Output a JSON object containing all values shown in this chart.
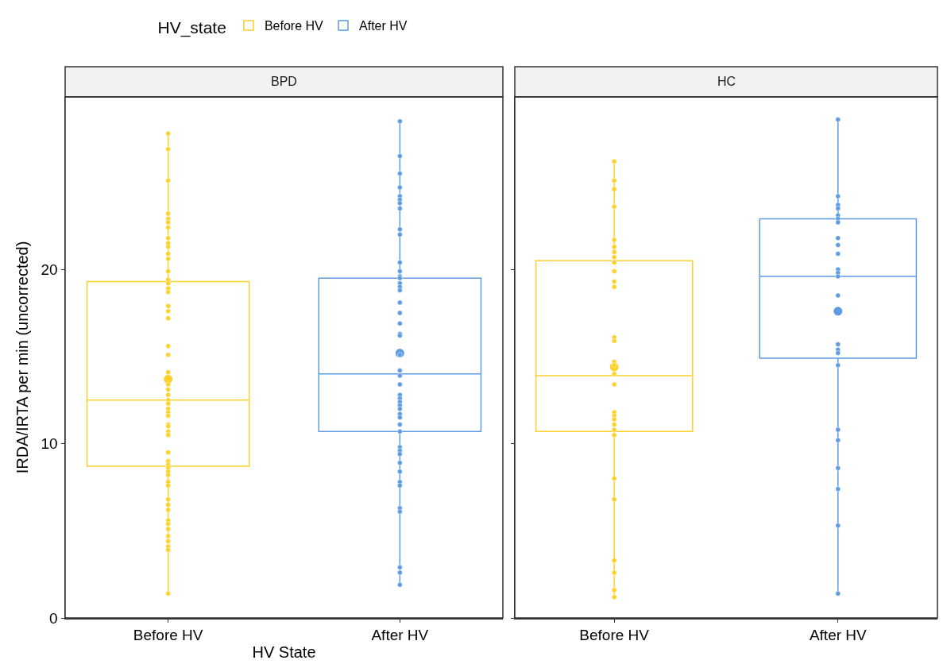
{
  "chart_data": [
    {
      "type": "box",
      "title": "BPD",
      "xlabel": "HV State",
      "ylabel": "IRDA/IRTA per min (uncorrected)",
      "legend_title": "HV_state",
      "legend": "top",
      "marker": "circle",
      "categories": [
        "Before HV",
        "After HV"
      ],
      "ylim": [
        0,
        29.9
      ],
      "yticks": [
        0,
        10,
        20
      ],
      "series": [
        {
          "name": "Before HV",
          "color": "#fcd12a",
          "boxes": [
            {
              "low": 1.4,
              "q1": 8.7,
              "median": 12.5,
              "q3": 19.3,
              "high": 27.8,
              "mean": 13.7
            },
            null
          ]
        },
        {
          "name": "After HV",
          "color": "#5d9ce3",
          "boxes": [
            null,
            {
              "low": 1.9,
              "q1": 10.7,
              "median": 14.0,
              "q3": 19.5,
              "high": 28.5,
              "mean": 15.2
            }
          ]
        },
        {
          "type": "scatter",
          "color": "#fcd12a",
          "x": [
            "Before HV",
            "Before HV",
            "Before HV",
            "Before HV",
            "Before HV",
            "Before HV",
            "Before HV",
            "Before HV",
            "Before HV",
            "Before HV",
            "Before HV",
            "Before HV",
            "Before HV",
            "Before HV",
            "Before HV",
            "Before HV",
            "Before HV",
            "Before HV",
            "Before HV",
            "Before HV",
            "Before HV",
            "Before HV",
            "Before HV",
            "Before HV",
            "Before HV",
            "Before HV",
            "Before HV",
            "Before HV",
            "Before HV",
            "Before HV",
            "Before HV",
            "Before HV",
            "Before HV",
            "Before HV",
            "Before HV",
            "Before HV",
            "Before HV",
            "Before HV",
            "Before HV",
            "Before HV",
            "Before HV",
            "Before HV",
            "Before HV",
            "Before HV",
            "Before HV",
            "Before HV",
            "Before HV",
            "Before HV",
            "Before HV",
            "Before HV",
            "Before HV",
            "Before HV",
            "Before HV",
            "Before HV"
          ],
          "values": [
            27.8,
            26.9,
            25.1,
            23.2,
            22.9,
            22.7,
            22.4,
            21.8,
            21.5,
            21.3,
            20.9,
            20.6,
            19.9,
            19.4,
            19.2,
            18.9,
            18.7,
            17.9,
            17.6,
            17.2,
            15.6,
            15.1,
            14.1,
            13.4,
            13.1,
            12.8,
            12.5,
            12.3,
            12.0,
            11.8,
            11.6,
            11.1,
            11.0,
            10.7,
            10.5,
            9.5,
            9.0,
            8.8,
            8.6,
            8.4,
            8.2,
            7.8,
            7.6,
            6.8,
            6.5,
            6.2,
            5.6,
            5.4,
            5.1,
            4.7,
            4.4,
            4.1,
            3.9,
            1.4
          ]
        },
        {
          "type": "scatter",
          "color": "#5d9ce3",
          "x": [
            "After HV",
            "After HV",
            "After HV",
            "After HV",
            "After HV",
            "After HV",
            "After HV",
            "After HV",
            "After HV",
            "After HV",
            "After HV",
            "After HV",
            "After HV",
            "After HV",
            "After HV",
            "After HV",
            "After HV",
            "After HV",
            "After HV",
            "After HV",
            "After HV",
            "After HV",
            "After HV",
            "After HV",
            "After HV",
            "After HV",
            "After HV",
            "After HV",
            "After HV",
            "After HV",
            "After HV",
            "After HV",
            "After HV",
            "After HV",
            "After HV",
            "After HV",
            "After HV",
            "After HV",
            "After HV",
            "After HV",
            "After HV",
            "After HV",
            "After HV",
            "After HV",
            "After HV",
            "After HV",
            "After HV"
          ],
          "values": [
            28.5,
            26.5,
            25.5,
            24.7,
            24.2,
            24.0,
            23.8,
            23.5,
            22.3,
            22.0,
            20.4,
            19.9,
            19.6,
            19.5,
            19.2,
            19.0,
            18.8,
            18.1,
            17.5,
            16.9,
            16.3,
            16.2,
            15.1,
            14.2,
            13.9,
            13.4,
            12.8,
            12.6,
            12.4,
            12.2,
            12.0,
            11.7,
            11.5,
            11.1,
            10.7,
            9.8,
            9.6,
            9.4,
            8.9,
            8.4,
            7.8,
            7.6,
            6.3,
            6.1,
            2.9,
            2.6,
            1.9
          ]
        }
      ]
    },
    {
      "type": "box",
      "title": "HC",
      "tick_labels": "x",
      "marker": "circle",
      "categories": [
        "Before HV",
        "After HV"
      ],
      "ylim": [
        0,
        29.9
      ],
      "yticks": [
        0,
        10,
        20
      ],
      "series": [
        {
          "color": "#fcd12a",
          "boxes": [
            {
              "low": 1.2,
              "q1": 10.7,
              "median": 13.9,
              "q3": 20.5,
              "high": 26.2,
              "mean": 14.4
            },
            null
          ]
        },
        {
          "color": "#5d9ce3",
          "boxes": [
            null,
            {
              "low": 1.4,
              "q1": 14.9,
              "median": 19.6,
              "q3": 22.9,
              "high": 28.6,
              "mean": 17.6
            }
          ]
        },
        {
          "type": "scatter",
          "color": "#fcd12a",
          "x": [
            "Before HV",
            "Before HV",
            "Before HV",
            "Before HV",
            "Before HV",
            "Before HV",
            "Before HV",
            "Before HV",
            "Before HV",
            "Before HV",
            "Before HV",
            "Before HV",
            "Before HV",
            "Before HV",
            "Before HV",
            "Before HV",
            "Before HV",
            "Before HV",
            "Before HV",
            "Before HV",
            "Before HV",
            "Before HV",
            "Before HV",
            "Before HV",
            "Before HV",
            "Before HV",
            "Before HV",
            "Before HV",
            "Before HV",
            "Before HV"
          ],
          "values": [
            26.2,
            25.1,
            24.6,
            23.6,
            21.7,
            21.3,
            21.0,
            20.7,
            20.4,
            19.9,
            19.3,
            19.0,
            16.1,
            15.9,
            14.7,
            14.5,
            14.0,
            13.4,
            11.8,
            11.6,
            11.4,
            11.1,
            10.8,
            10.5,
            8.0,
            6.8,
            3.3,
            2.6,
            1.6,
            1.2
          ]
        },
        {
          "type": "scatter",
          "color": "#5d9ce3",
          "x": [
            "After HV",
            "After HV",
            "After HV",
            "After HV",
            "After HV",
            "After HV",
            "After HV",
            "After HV",
            "After HV",
            "After HV",
            "After HV",
            "After HV",
            "After HV",
            "After HV",
            "After HV",
            "After HV",
            "After HV",
            "After HV",
            "After HV",
            "After HV",
            "After HV",
            "After HV",
            "After HV",
            "After HV"
          ],
          "values": [
            28.6,
            24.2,
            23.7,
            23.5,
            23.1,
            22.9,
            22.7,
            21.8,
            21.4,
            20.9,
            20.0,
            19.8,
            19.6,
            18.5,
            15.7,
            15.4,
            15.2,
            14.5,
            10.8,
            10.2,
            8.6,
            7.4,
            5.3,
            1.4
          ]
        }
      ]
    }
  ]
}
